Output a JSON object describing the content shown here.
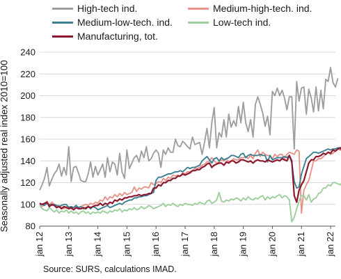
{
  "chart_data": {
    "type": "line",
    "ylabel": "Seasonally adjusted real  index 2010=100",
    "xlabel": "",
    "ylim": [
      80,
      240
    ],
    "yticks": [
      80,
      100,
      120,
      140,
      160,
      180,
      200,
      220,
      240
    ],
    "xticks": [
      "jan 12",
      "jan 13",
      "jan 14",
      "jan 15",
      "jan 16",
      "jan 17",
      "jan 18",
      "jan 19",
      "jan 20",
      "jan 21",
      "jan 22"
    ],
    "xrange": [
      "2012-01",
      "2022-03"
    ],
    "grid": "horizontal",
    "legend_position": "top",
    "source": "Source: SURS, calculations IMAD.",
    "series": [
      {
        "name": "High-tech ind.",
        "color": "#9e9e9e",
        "x_start": "2012-01",
        "values": [
          113,
          118,
          124,
          134,
          117,
          123,
          128,
          131,
          137,
          126,
          134,
          127,
          153,
          121,
          134,
          135,
          129,
          122,
          121,
          121,
          128,
          139,
          125,
          135,
          127,
          132,
          137,
          125,
          143,
          130,
          139,
          137,
          127,
          147,
          130,
          124,
          150,
          133,
          138,
          143,
          145,
          139,
          149,
          143,
          153,
          140,
          142,
          147,
          150,
          147,
          134,
          150,
          146,
          152,
          148,
          148,
          160,
          154,
          153,
          158,
          156,
          153,
          151,
          162,
          155,
          156,
          157,
          146,
          157,
          170,
          152,
          175,
          189,
          152,
          166,
          162,
          178,
          162,
          183,
          171,
          177,
          172,
          190,
          175,
          194,
          175,
          167,
          178,
          162,
          192,
          199,
          192,
          184,
          172,
          181,
          164,
          204,
          200,
          207,
          200,
          205,
          198,
          187,
          199,
          199,
          151,
          213,
          195,
          207,
          208,
          183,
          206,
          198,
          185,
          208,
          186,
          205,
          188,
          215,
          213,
          226,
          212,
          208,
          216
        ]
      },
      {
        "name": "Medium-high-tech. ind.",
        "color": "#e8938a",
        "x_start": "2012-01",
        "values": [
          101,
          98,
          100,
          103,
          99,
          102,
          100,
          98,
          99,
          97,
          96,
          98,
          98,
          96,
          97,
          99,
          97,
          98,
          99,
          100,
          99,
          101,
          100,
          102,
          101,
          104,
          103,
          107,
          104,
          107,
          106,
          109,
          107,
          110,
          108,
          111,
          109,
          110,
          111,
          116,
          112,
          115,
          114,
          116,
          116,
          115,
          120,
          118,
          119,
          121,
          120,
          124,
          122,
          125,
          124,
          127,
          126,
          127,
          126,
          129,
          128,
          130,
          130,
          131,
          133,
          133,
          134,
          136,
          137,
          139,
          140,
          143,
          140,
          138,
          139,
          141,
          140,
          142,
          139,
          140,
          142,
          141,
          141,
          143,
          143,
          144,
          142,
          145,
          142,
          147,
          150,
          144,
          148,
          146,
          145,
          145,
          142,
          146,
          144,
          146,
          146,
          142,
          146,
          148,
          147,
          146,
          150,
          149,
          92,
          113,
          118,
          122,
          131,
          140,
          140,
          142,
          142,
          144,
          146,
          148,
          146,
          147,
          149,
          151,
          150,
          150,
          150,
          149,
          150,
          151,
          151,
          150,
          150,
          151
        ]
      },
      {
        "name": "Medium-low-tech. ind.",
        "color": "#3b7f91",
        "x_start": "2012-01",
        "values": [
          100,
          100,
          99,
          101,
          100,
          99,
          100,
          99,
          98,
          99,
          100,
          100,
          97,
          98,
          97,
          99,
          97,
          98,
          96,
          97,
          98,
          96,
          98,
          97,
          95,
          96,
          97,
          98,
          99,
          97,
          98,
          99,
          100,
          101,
          100,
          102,
          103,
          104,
          104,
          106,
          106,
          107,
          107,
          108,
          108,
          109,
          110,
          111,
          122,
          125,
          125,
          126,
          127,
          128,
          128,
          129,
          130,
          130,
          131,
          130,
          132,
          134,
          133,
          134,
          134,
          135,
          136,
          140,
          142,
          144,
          141,
          138,
          142,
          143,
          140,
          143,
          141,
          142,
          143,
          145,
          145,
          144,
          143,
          146,
          147,
          143,
          145,
          146,
          145,
          145,
          145,
          146,
          145,
          145,
          139,
          145,
          141,
          142,
          143,
          143,
          143,
          144,
          143,
          145,
          138,
          121,
          115,
          116,
          128,
          135,
          142,
          144,
          146,
          148,
          148,
          147,
          148,
          149,
          150,
          151,
          150,
          151,
          151,
          152,
          152,
          153
        ]
      },
      {
        "name": "Low-tech ind.",
        "color": "#9dcf9b",
        "x_start": "2012-01",
        "values": [
          99,
          96,
          95,
          94,
          97,
          95,
          93,
          95,
          92,
          94,
          93,
          95,
          92,
          94,
          92,
          93,
          91,
          93,
          94,
          92,
          93,
          91,
          93,
          92,
          93,
          92,
          94,
          93,
          92,
          94,
          93,
          95,
          94,
          96,
          93,
          95,
          94,
          96,
          95,
          97,
          95,
          96,
          98,
          96,
          97,
          99,
          98,
          96,
          97,
          98,
          99,
          101,
          98,
          100,
          99,
          101,
          99,
          98,
          100,
          99,
          101,
          100,
          100,
          99,
          101,
          100,
          102,
          101,
          100,
          103,
          104,
          101,
          102,
          104,
          111,
          103,
          102,
          104,
          103,
          105,
          104,
          106,
          105,
          103,
          106,
          104,
          107,
          105,
          104,
          106,
          105,
          107,
          108,
          104,
          107,
          105,
          107,
          106,
          108,
          109,
          106,
          108,
          107,
          104,
          84,
          88,
          96,
          103,
          108,
          108,
          104,
          109,
          102,
          105,
          106,
          110,
          111,
          115,
          115,
          118,
          117,
          120,
          120,
          119,
          118,
          121,
          119,
          120,
          121,
          122,
          120,
          121,
          123
        ]
      },
      {
        "name": "Manufacturing, tot.",
        "color": "#8b1a2e",
        "x_start": "2012-01",
        "values": [
          101,
          100,
          101,
          102,
          98,
          100,
          99,
          97,
          98,
          96,
          98,
          97,
          96,
          97,
          95,
          97,
          96,
          96,
          97,
          96,
          98,
          97,
          98,
          99,
          99,
          101,
          99,
          101,
          100,
          102,
          101,
          104,
          103,
          105,
          104,
          106,
          106,
          107,
          107,
          108,
          108,
          109,
          108,
          109,
          109,
          110,
          110,
          115,
          115,
          118,
          117,
          120,
          120,
          122,
          122,
          124,
          124,
          126,
          126,
          128,
          127,
          128,
          129,
          131,
          131,
          132,
          132,
          134,
          135,
          137,
          138,
          134,
          136,
          137,
          138,
          138,
          136,
          139,
          138,
          140,
          140,
          138,
          139,
          141,
          141,
          140,
          139,
          140,
          138,
          140,
          141,
          140,
          140,
          139,
          141,
          140,
          139,
          140,
          141,
          140,
          142,
          141,
          140,
          145,
          140,
          108,
          102,
          113,
          118,
          122,
          130,
          138,
          141,
          141,
          144,
          144,
          145,
          147,
          146,
          148,
          147,
          150,
          149,
          151,
          152,
          148,
          151,
          150
        ]
      }
    ]
  }
}
